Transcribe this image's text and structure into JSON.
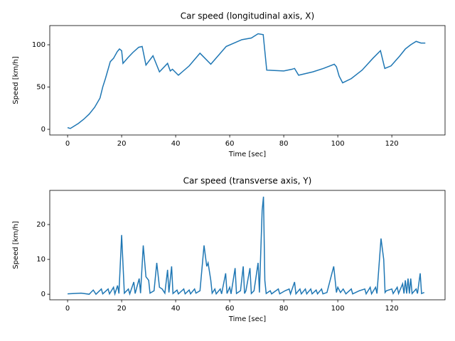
{
  "chart_data": [
    {
      "type": "line",
      "title": "Car speed (longitudinal axis, X)",
      "xlabel": "Time [sec]",
      "ylabel": "Speed [km/h]",
      "x": [
        0,
        1,
        2,
        4,
        6,
        8,
        10,
        12,
        13,
        14,
        15.8,
        17,
        18.4,
        19.2,
        20,
        20.5,
        22.4,
        24.2,
        26.3,
        27.6,
        29,
        31.6,
        34,
        37,
        38,
        38.8,
        41,
        45,
        49,
        53,
        58.7,
        64.5,
        68,
        70.5,
        72.4,
        73.7,
        80,
        83,
        84,
        85.5,
        90.8,
        94.7,
        98.7,
        99.5,
        100.5,
        101.8,
        105,
        109,
        113,
        115.8,
        117.4,
        119.7,
        123,
        125,
        127,
        129,
        130.8,
        132.4
      ],
      "series": [
        {
          "color": "#1f77b4",
          "values": [
            2,
            1,
            3,
            7,
            12,
            18,
            26,
            37,
            50,
            60,
            80,
            84,
            92,
            95,
            93,
            78,
            85,
            91,
            97,
            98,
            76,
            87,
            68,
            78,
            69,
            71,
            64,
            75,
            90,
            77,
            98,
            106,
            108,
            113,
            112,
            70,
            69,
            71,
            72,
            64,
            68,
            72,
            77,
            74,
            63,
            55,
            60,
            70,
            84,
            93,
            72,
            75,
            87,
            95,
            100,
            104,
            102,
            102
          ]
        }
      ],
      "xlim": [
        -6.6,
        139.7
      ],
      "ylim": [
        -6.7,
        122.7
      ],
      "xticks": [
        0,
        20,
        40,
        60,
        80,
        100,
        120
      ],
      "yticks": [
        0,
        50,
        100
      ]
    },
    {
      "type": "line",
      "title": "Car speed (transverse axis, Y)",
      "xlabel": "Time [sec]",
      "ylabel": "Speed [km/h]",
      "x": [
        0,
        5,
        8,
        9.5,
        10.5,
        12.5,
        13,
        15,
        15.5,
        17,
        17.5,
        18.5,
        19,
        20,
        21,
        22.5,
        23,
        24.5,
        25,
        26.5,
        27,
        28,
        29,
        30,
        30.5,
        32,
        33,
        34,
        35,
        36,
        37,
        37.5,
        38.5,
        39,
        40.5,
        41,
        43,
        43.5,
        45,
        45.5,
        47,
        47.5,
        49,
        50.5,
        51.5,
        52,
        53,
        53.5,
        54.5,
        55,
        56.5,
        57,
        58.5,
        59,
        60,
        60.5,
        62,
        62.5,
        64,
        65,
        65.5,
        66,
        67.5,
        68,
        69,
        70.5,
        71,
        72,
        72.5,
        73,
        73.5,
        75,
        75.5,
        78,
        78.5,
        80.5,
        82,
        82.5,
        84,
        84.5,
        86,
        86.5,
        88,
        88.5,
        90,
        90.5,
        92,
        92.5,
        94,
        94.5,
        96,
        98.5,
        99.5,
        100,
        101,
        102,
        103,
        105,
        105.5,
        108,
        110,
        110.5,
        112,
        112.5,
        114,
        114.5,
        116,
        117,
        117.5,
        118,
        120,
        120.5,
        122,
        122.5,
        124,
        124.5,
        125,
        125.5,
        126,
        126.5,
        127,
        127.5,
        129,
        129.5,
        130.5,
        131,
        132
      ],
      "series": [
        {
          "color": "#1f77b4",
          "values": [
            0.1,
            0.3,
            0,
            1.2,
            0,
            1.5,
            0.1,
            1.5,
            0.1,
            2,
            0.1,
            2.5,
            0.2,
            17,
            0.3,
            1.5,
            0.1,
            3.5,
            0.2,
            4.5,
            0.3,
            14,
            5,
            4,
            0.3,
            1,
            9,
            2,
            1.5,
            0.3,
            7,
            0.5,
            8,
            0.2,
            1.2,
            0.1,
            1.5,
            0.1,
            1.2,
            0.1,
            1.5,
            0.3,
            1,
            14,
            8,
            9,
            4,
            0.3,
            1.5,
            0.1,
            1.5,
            0.1,
            6,
            0.2,
            2,
            0.1,
            7.5,
            0.2,
            1,
            8,
            0.2,
            1,
            7.5,
            0.2,
            1,
            9,
            0.5,
            24,
            28,
            4,
            0.2,
            1,
            0.1,
            1.5,
            0.1,
            1,
            1.5,
            0.1,
            3.5,
            0.1,
            1.5,
            0.1,
            1.5,
            0.1,
            1.5,
            0.1,
            1.2,
            0.1,
            1.5,
            0.1,
            0.5,
            8,
            0.5,
            2,
            0.5,
            1.5,
            0.1,
            1.5,
            0.1,
            1,
            1.5,
            0.1,
            2,
            0.1,
            2,
            0.2,
            16,
            10,
            0.5,
            1,
            1.5,
            0.2,
            2,
            0.2,
            3,
            0.2,
            4,
            0.2,
            4.5,
            0.2,
            4.5,
            0.2,
            1.5,
            0.2,
            6,
            0.2,
            0.5
          ]
        }
      ],
      "xlim": [
        -6.6,
        139.7
      ],
      "ylim": [
        -1.6,
        29.8
      ],
      "xticks": [
        0,
        20,
        40,
        60,
        80,
        100,
        120
      ],
      "yticks": [
        0,
        10,
        20
      ]
    }
  ]
}
